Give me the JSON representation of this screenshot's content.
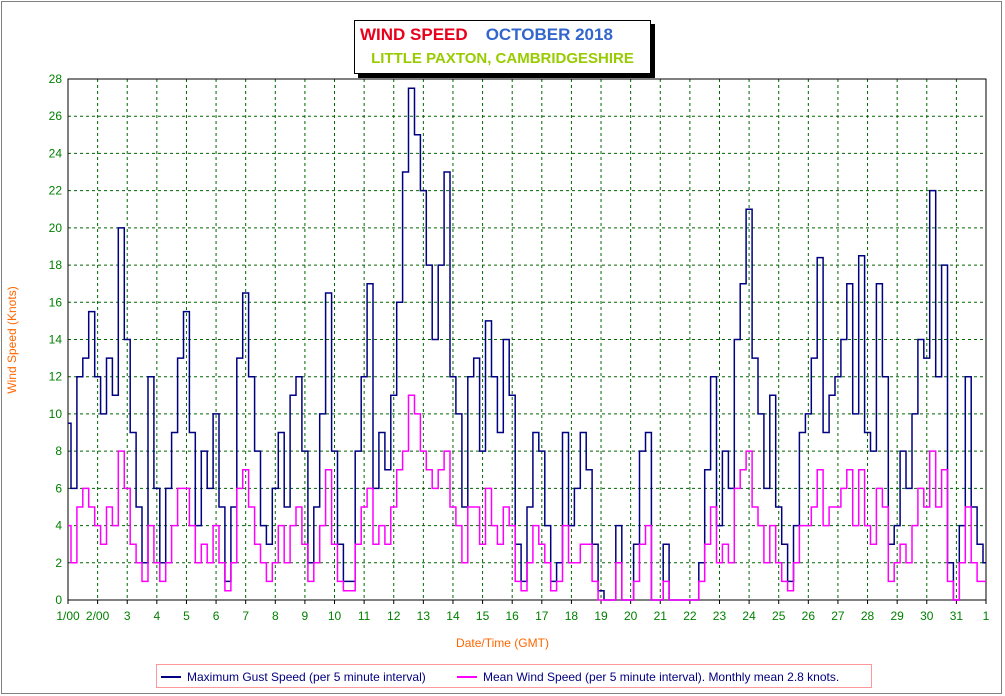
{
  "title": {
    "main": "WIND SPEED",
    "month": "OCTOBER 2018",
    "location": "LITTLE PAXTON, CAMBRIDGESHIRE"
  },
  "legend": {
    "gust": "Maximum Gust Speed (per 5 minute interval)",
    "mean": "Mean Wind Speed (per 5 minute interval). Monthly mean 2.8 knots."
  },
  "chart_data": {
    "type": "line",
    "xlabel": "Date/Time (GMT)",
    "ylabel": "Wind Speed (Knots)",
    "ylim": [
      0,
      28
    ],
    "xlim_days": [
      1,
      32
    ],
    "grid": true,
    "legend_position": "bottom",
    "yticks": [
      0,
      2,
      4,
      6,
      8,
      10,
      12,
      14,
      16,
      18,
      20,
      22,
      24,
      26,
      28
    ],
    "xtick_labels": [
      "1/00",
      "2/00",
      "3",
      "4",
      "5",
      "6",
      "7",
      "8",
      "9",
      "10",
      "11",
      "12",
      "13",
      "14",
      "15",
      "16",
      "17",
      "18",
      "19",
      "20",
      "21",
      "22",
      "23",
      "24",
      "25",
      "26",
      "27",
      "28",
      "29",
      "30",
      "31",
      "1"
    ],
    "series": [
      {
        "name": "Maximum Gust Speed (per 5 minute interval)",
        "color": "#000080",
        "day": [
          1.0,
          1.2,
          1.4,
          1.6,
          1.8,
          2.0,
          2.2,
          2.4,
          2.6,
          2.8,
          3.0,
          3.2,
          3.4,
          3.6,
          3.8,
          4.0,
          4.2,
          4.4,
          4.6,
          4.8,
          5.0,
          5.2,
          5.4,
          5.6,
          5.8,
          6.0,
          6.2,
          6.4,
          6.6,
          6.8,
          7.0,
          7.2,
          7.4,
          7.6,
          7.8,
          8.0,
          8.2,
          8.4,
          8.6,
          8.8,
          9.0,
          9.2,
          9.4,
          9.6,
          9.8,
          10.0,
          10.2,
          10.4,
          10.6,
          10.8,
          11.0,
          11.2,
          11.4,
          11.6,
          11.8,
          12.0,
          12.2,
          12.4,
          12.6,
          12.8,
          13.0,
          13.2,
          13.4,
          13.6,
          13.8,
          14.0,
          14.2,
          14.4,
          14.6,
          14.8,
          15.0,
          15.2,
          15.4,
          15.6,
          15.8,
          16.0,
          16.2,
          16.4,
          16.6,
          16.8,
          17.0,
          17.2,
          17.4,
          17.6,
          17.8,
          18.0,
          18.2,
          18.4,
          18.6,
          18.8,
          19.0,
          19.2,
          19.4,
          19.6,
          19.8,
          20.0,
          20.2,
          20.4,
          20.6,
          20.8,
          21.0,
          21.2,
          21.4,
          21.6,
          21.8,
          22.0,
          22.2,
          22.4,
          22.6,
          22.8,
          23.0,
          23.2,
          23.4,
          23.6,
          23.8,
          24.0,
          24.2,
          24.4,
          24.6,
          24.8,
          25.0,
          25.2,
          25.4,
          25.6,
          25.8,
          26.0,
          26.2,
          26.4,
          26.6,
          26.8,
          27.0,
          27.2,
          27.4,
          27.6,
          27.8,
          28.0,
          28.2,
          28.4,
          28.6,
          28.8,
          29.0,
          29.2,
          29.4,
          29.6,
          29.8,
          30.0,
          30.2,
          30.4,
          30.6,
          30.8,
          31.0,
          31.2,
          31.4,
          31.6,
          31.8,
          32.0
        ],
        "values": [
          9.5,
          6,
          12,
          13,
          15.5,
          12,
          10,
          13,
          11,
          20,
          14,
          9,
          5,
          2,
          12,
          6,
          2,
          6,
          9,
          13,
          15.5,
          9,
          4,
          8,
          6,
          10,
          5,
          1,
          5,
          13,
          16.5,
          12,
          8,
          4,
          3,
          6,
          9,
          5,
          11,
          12,
          8,
          2,
          5,
          10,
          16.5,
          8,
          3,
          1,
          1,
          8,
          12,
          17,
          6,
          9,
          7,
          11,
          16,
          23,
          27.5,
          25,
          22,
          18,
          14,
          18,
          23,
          12,
          10,
          5,
          12,
          13,
          8,
          15,
          12,
          9,
          14,
          11,
          3,
          1,
          5,
          9,
          8,
          4,
          1,
          2,
          9,
          4,
          6,
          9,
          7,
          3,
          0.5,
          0,
          0,
          4,
          0,
          0,
          3,
          8,
          9,
          0,
          0,
          3,
          0,
          0,
          0,
          0,
          0,
          2,
          7,
          12,
          4,
          8,
          6,
          14,
          17,
          21,
          13,
          10,
          6,
          11,
          5,
          3,
          1,
          4,
          9,
          10,
          13,
          18.4,
          9,
          11,
          12,
          14,
          17,
          10,
          18.5,
          9,
          8,
          17,
          12,
          3,
          4,
          8,
          6,
          10,
          14,
          13,
          22,
          12,
          18,
          2,
          0,
          4,
          12,
          5,
          3,
          2
        ]
      },
      {
        "name": "Mean Wind Speed (per 5 minute interval). Monthly mean 2.8 knots.",
        "color": "#ff00ff",
        "day": [
          1.0,
          1.2,
          1.4,
          1.6,
          1.8,
          2.0,
          2.2,
          2.4,
          2.6,
          2.8,
          3.0,
          3.2,
          3.4,
          3.6,
          3.8,
          4.0,
          4.2,
          4.4,
          4.6,
          4.8,
          5.0,
          5.2,
          5.4,
          5.6,
          5.8,
          6.0,
          6.2,
          6.4,
          6.6,
          6.8,
          7.0,
          7.2,
          7.4,
          7.6,
          7.8,
          8.0,
          8.2,
          8.4,
          8.6,
          8.8,
          9.0,
          9.2,
          9.4,
          9.6,
          9.8,
          10.0,
          10.2,
          10.4,
          10.6,
          10.8,
          11.0,
          11.2,
          11.4,
          11.6,
          11.8,
          12.0,
          12.2,
          12.4,
          12.6,
          12.8,
          13.0,
          13.2,
          13.4,
          13.6,
          13.8,
          14.0,
          14.2,
          14.4,
          14.6,
          14.8,
          15.0,
          15.2,
          15.4,
          15.6,
          15.8,
          16.0,
          16.2,
          16.4,
          16.6,
          16.8,
          17.0,
          17.2,
          17.4,
          17.6,
          17.8,
          18.0,
          18.2,
          18.4,
          18.6,
          18.8,
          19.0,
          19.2,
          19.4,
          19.6,
          19.8,
          20.0,
          20.2,
          20.4,
          20.6,
          20.8,
          21.0,
          21.2,
          21.4,
          21.6,
          21.8,
          22.0,
          22.2,
          22.4,
          22.6,
          22.8,
          23.0,
          23.2,
          23.4,
          23.6,
          23.8,
          24.0,
          24.2,
          24.4,
          24.6,
          24.8,
          25.0,
          25.2,
          25.4,
          25.6,
          25.8,
          26.0,
          26.2,
          26.4,
          26.6,
          26.8,
          27.0,
          27.2,
          27.4,
          27.6,
          27.8,
          28.0,
          28.2,
          28.4,
          28.6,
          28.8,
          29.0,
          29.2,
          29.4,
          29.6,
          29.8,
          30.0,
          30.2,
          30.4,
          30.6,
          30.8,
          31.0,
          31.2,
          31.4,
          31.6,
          31.8,
          32.0
        ],
        "values": [
          4,
          2,
          5,
          6,
          5,
          4,
          3,
          5,
          4,
          8,
          6,
          3,
          2,
          1,
          4,
          2,
          1,
          2,
          4,
          6,
          6,
          4,
          2,
          3,
          2,
          4,
          2,
          0.5,
          2,
          6,
          7,
          5,
          3,
          2,
          1,
          2,
          4,
          2,
          4,
          5,
          3,
          1,
          2,
          4,
          7,
          3,
          1,
          0.5,
          0.5,
          3,
          5,
          6,
          3,
          4,
          3,
          5,
          7,
          8,
          11,
          10,
          8,
          7,
          6,
          7,
          8,
          5,
          4,
          2,
          5,
          5,
          3,
          6,
          4,
          3,
          5,
          4,
          1,
          0.5,
          2,
          4,
          3,
          2,
          0.5,
          1,
          4,
          2,
          2,
          3,
          3,
          1,
          0,
          0,
          0,
          2,
          0,
          0,
          1,
          3,
          4,
          0,
          0,
          1,
          0,
          0,
          0,
          0,
          0,
          1,
          3,
          5,
          2,
          3,
          2,
          6,
          7,
          8,
          5,
          4,
          2,
          4,
          2,
          1,
          0.5,
          2,
          4,
          4,
          5,
          7,
          4,
          5,
          5,
          6,
          7,
          4,
          7,
          4,
          3,
          6,
          5,
          1,
          2,
          3,
          2,
          4,
          6,
          5,
          8,
          5,
          7,
          1,
          0,
          2,
          5,
          2,
          1,
          1
        ]
      }
    ]
  }
}
